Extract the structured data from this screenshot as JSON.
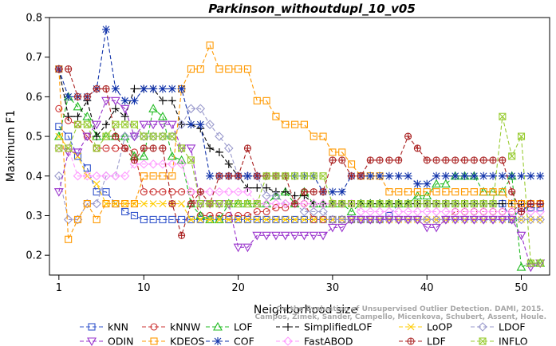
{
  "chart_data": {
    "type": "line",
    "title": "Parkinson_withoutdupl_10_v05",
    "xlabel": "Neighborhood size",
    "ylabel": "Maximum F1",
    "xlim": [
      0,
      53
    ],
    "ylim": [
      0.15,
      0.8
    ],
    "xticks": [
      1,
      10,
      20,
      30,
      40,
      50
    ],
    "yticks": [
      0.2,
      0.3,
      0.4,
      0.5,
      0.6,
      0.7,
      0.8
    ],
    "grid": false,
    "legend_position": "bottom",
    "credit": "Campos, Zimek, Sander, Campello, Micenkova, Schubert, Assent, Houle. On the Evaluation of Unsupervised Outlier Detection. DAMI, 2015.",
    "x": [
      1,
      2,
      3,
      4,
      5,
      6,
      7,
      8,
      9,
      10,
      11,
      12,
      13,
      14,
      15,
      16,
      17,
      18,
      19,
      20,
      21,
      22,
      23,
      24,
      25,
      26,
      27,
      28,
      29,
      30,
      31,
      32,
      33,
      34,
      35,
      36,
      37,
      38,
      39,
      40,
      41,
      42,
      43,
      44,
      45,
      46,
      47,
      48,
      49,
      50,
      51,
      52
    ],
    "series": [
      {
        "name": "kNN",
        "color": "#3355cc",
        "marker": "square",
        "values": [
          0.525,
          0.5,
          0.45,
          0.42,
          0.36,
          0.36,
          0.33,
          0.31,
          0.3,
          0.29,
          0.29,
          0.29,
          0.29,
          0.29,
          0.29,
          0.29,
          0.29,
          0.29,
          0.29,
          0.29,
          0.29,
          0.29,
          0.29,
          0.29,
          0.29,
          0.29,
          0.29,
          0.29,
          0.29,
          0.29,
          0.29,
          0.29,
          0.29,
          0.29,
          0.29,
          0.3,
          0.33,
          0.33,
          0.33,
          0.33,
          0.33,
          0.33,
          0.33,
          0.33,
          0.33,
          0.33,
          0.33,
          0.33,
          0.29,
          0.32,
          0.32,
          0.32
        ]
      },
      {
        "name": "kNNW",
        "color": "#cc3333",
        "marker": "circle",
        "values": [
          0.57,
          0.54,
          0.53,
          0.5,
          0.47,
          0.47,
          0.47,
          0.47,
          0.46,
          0.36,
          0.36,
          0.36,
          0.36,
          0.36,
          0.36,
          0.3,
          0.3,
          0.3,
          0.3,
          0.3,
          0.3,
          0.31,
          0.31,
          0.32,
          0.32,
          0.33,
          0.33,
          0.29,
          0.29,
          0.29,
          0.29,
          0.29,
          0.29,
          0.29,
          0.29,
          0.29,
          0.29,
          0.29,
          0.29,
          0.29,
          0.29,
          0.29,
          0.31,
          0.31,
          0.31,
          0.31,
          0.31,
          0.31,
          0.31,
          0.33,
          0.33,
          0.33
        ]
      },
      {
        "name": "LOF",
        "color": "#22bb22",
        "marker": "triangle-up",
        "values": [
          0.5,
          0.6,
          0.575,
          0.55,
          0.5,
          0.5,
          0.5,
          0.5,
          0.45,
          0.45,
          0.57,
          0.55,
          0.45,
          0.44,
          0.33,
          0.3,
          0.29,
          0.29,
          0.33,
          0.33,
          0.33,
          0.33,
          0.33,
          0.35,
          0.36,
          0.33,
          0.36,
          0.33,
          0.33,
          0.33,
          0.33,
          0.31,
          0.33,
          0.33,
          0.33,
          0.33,
          0.33,
          0.33,
          0.35,
          0.35,
          0.38,
          0.38,
          0.4,
          0.4,
          0.4,
          0.36,
          0.36,
          0.36,
          0.4,
          0.17,
          0.18,
          0.18
        ]
      },
      {
        "name": "SimplifiedLOF",
        "color": "#000000",
        "marker": "plus",
        "values": [
          0.67,
          0.55,
          0.55,
          0.59,
          0.5,
          0.53,
          0.57,
          0.55,
          0.62,
          0.62,
          0.62,
          0.59,
          0.59,
          0.53,
          0.53,
          0.52,
          0.47,
          0.46,
          0.43,
          0.4,
          0.37,
          0.37,
          0.37,
          0.36,
          0.36,
          0.35,
          0.35,
          0.33,
          0.33,
          0.33,
          0.33,
          0.33,
          0.33,
          0.33,
          0.33,
          0.33,
          0.33,
          0.33,
          0.33,
          0.33,
          0.33,
          0.33,
          0.33,
          0.33,
          0.33,
          0.33,
          0.33,
          0.33,
          0.33,
          0.33,
          0.33,
          0.33
        ]
      },
      {
        "name": "LoOP",
        "color": "#ffcc00",
        "marker": "x",
        "values": [
          0.5,
          0.47,
          0.45,
          0.4,
          0.38,
          0.33,
          0.33,
          0.33,
          0.33,
          0.33,
          0.33,
          0.33,
          0.33,
          0.33,
          0.29,
          0.29,
          0.29,
          0.29,
          0.29,
          0.29,
          0.29,
          0.29,
          0.29,
          0.29,
          0.29,
          0.29,
          0.29,
          0.29,
          0.29,
          0.29,
          0.29,
          0.29,
          0.29,
          0.29,
          0.29,
          0.29,
          0.29,
          0.29,
          0.29,
          0.29,
          0.29,
          0.29,
          0.29,
          0.29,
          0.29,
          0.29,
          0.29,
          0.29,
          0.29,
          0.29,
          0.29,
          0.29
        ]
      },
      {
        "name": "LDOF",
        "color": "#9999cc",
        "marker": "diamond",
        "values": [
          0.4,
          0.29,
          0.29,
          0.33,
          0.33,
          0.4,
          0.4,
          0.5,
          0.5,
          0.5,
          0.5,
          0.5,
          0.5,
          0.53,
          0.57,
          0.57,
          0.53,
          0.5,
          0.47,
          0.4,
          0.4,
          0.4,
          0.35,
          0.35,
          0.33,
          0.33,
          0.31,
          0.31,
          0.31,
          0.29,
          0.29,
          0.29,
          0.29,
          0.29,
          0.29,
          0.29,
          0.29,
          0.29,
          0.29,
          0.29,
          0.29,
          0.29,
          0.29,
          0.29,
          0.29,
          0.29,
          0.29,
          0.29,
          0.29,
          0.29,
          0.29,
          0.29
        ]
      },
      {
        "name": "ODIN",
        "color": "#9933cc",
        "marker": "triangle-down",
        "values": [
          0.36,
          0.46,
          0.46,
          0.5,
          0.53,
          0.59,
          0.59,
          0.57,
          0.5,
          0.53,
          0.53,
          0.53,
          0.53,
          0.47,
          0.47,
          0.33,
          0.33,
          0.33,
          0.33,
          0.22,
          0.22,
          0.25,
          0.25,
          0.25,
          0.25,
          0.25,
          0.25,
          0.25,
          0.25,
          0.27,
          0.27,
          0.29,
          0.29,
          0.29,
          0.29,
          0.29,
          0.29,
          0.29,
          0.29,
          0.27,
          0.27,
          0.29,
          0.29,
          0.29,
          0.29,
          0.29,
          0.29,
          0.29,
          0.29,
          0.25,
          0.17,
          0.18
        ]
      },
      {
        "name": "KDEOS",
        "color": "#ff9900",
        "marker": "square",
        "values": [
          0.67,
          0.24,
          0.29,
          0.33,
          0.29,
          0.33,
          0.33,
          0.33,
          0.33,
          0.4,
          0.4,
          0.4,
          0.4,
          0.62,
          0.67,
          0.67,
          0.73,
          0.67,
          0.67,
          0.67,
          0.67,
          0.59,
          0.59,
          0.55,
          0.53,
          0.53,
          0.53,
          0.5,
          0.5,
          0.46,
          0.46,
          0.43,
          0.4,
          0.4,
          0.4,
          0.36,
          0.36,
          0.36,
          0.36,
          0.36,
          0.36,
          0.36,
          0.36,
          0.36,
          0.36,
          0.36,
          0.36,
          0.36,
          0.33,
          0.33,
          0.33,
          0.33
        ]
      },
      {
        "name": "COF",
        "color": "#1133aa",
        "marker": "asterisk",
        "values": [
          0.67,
          0.6,
          0.6,
          0.6,
          0.62,
          0.77,
          0.62,
          0.59,
          0.59,
          0.62,
          0.62,
          0.62,
          0.62,
          0.62,
          0.53,
          0.53,
          0.4,
          0.4,
          0.4,
          0.4,
          0.4,
          0.4,
          0.4,
          0.4,
          0.4,
          0.4,
          0.4,
          0.4,
          0.36,
          0.36,
          0.36,
          0.4,
          0.4,
          0.4,
          0.4,
          0.4,
          0.4,
          0.4,
          0.38,
          0.38,
          0.4,
          0.4,
          0.4,
          0.4,
          0.4,
          0.4,
          0.4,
          0.4,
          0.4,
          0.4,
          0.4,
          0.4
        ]
      },
      {
        "name": "FastABOD",
        "color": "#ff99ff",
        "marker": "diamond",
        "values": [
          0.47,
          0.47,
          0.4,
          0.4,
          0.4,
          0.4,
          0.4,
          0.4,
          0.43,
          0.43,
          0.43,
          0.43,
          0.43,
          0.43,
          0.36,
          0.36,
          0.36,
          0.36,
          0.36,
          0.36,
          0.36,
          0.33,
          0.33,
          0.33,
          0.33,
          0.33,
          0.33,
          0.33,
          0.33,
          0.33,
          0.33,
          0.33,
          0.31,
          0.31,
          0.31,
          0.31,
          0.31,
          0.31,
          0.31,
          0.31,
          0.31,
          0.31,
          0.31,
          0.31,
          0.31,
          0.31,
          0.31,
          0.31,
          0.31,
          0.31,
          0.31,
          0.31
        ]
      },
      {
        "name": "LDF",
        "color": "#aa2222",
        "marker": "circle-plus",
        "values": [
          0.67,
          0.67,
          0.6,
          0.6,
          0.62,
          0.62,
          0.5,
          0.47,
          0.44,
          0.47,
          0.47,
          0.47,
          0.33,
          0.25,
          0.33,
          0.36,
          0.33,
          0.4,
          0.4,
          0.4,
          0.47,
          0.4,
          0.4,
          0.4,
          0.4,
          0.33,
          0.36,
          0.36,
          0.36,
          0.44,
          0.44,
          0.4,
          0.4,
          0.44,
          0.44,
          0.44,
          0.44,
          0.5,
          0.47,
          0.44,
          0.44,
          0.44,
          0.44,
          0.44,
          0.44,
          0.44,
          0.44,
          0.44,
          0.36,
          0.31,
          0.33,
          0.33
        ]
      },
      {
        "name": "INFLO",
        "color": "#99cc33",
        "marker": "star-box",
        "values": [
          0.47,
          0.47,
          0.53,
          0.53,
          0.47,
          0.5,
          0.53,
          0.53,
          0.53,
          0.5,
          0.5,
          0.5,
          0.5,
          0.47,
          0.44,
          0.33,
          0.33,
          0.33,
          0.33,
          0.33,
          0.33,
          0.33,
          0.4,
          0.4,
          0.4,
          0.4,
          0.4,
          0.4,
          0.4,
          0.33,
          0.33,
          0.33,
          0.33,
          0.33,
          0.33,
          0.33,
          0.33,
          0.33,
          0.33,
          0.33,
          0.33,
          0.33,
          0.33,
          0.33,
          0.33,
          0.33,
          0.33,
          0.55,
          0.45,
          0.5,
          0.18,
          0.18
        ]
      }
    ]
  }
}
